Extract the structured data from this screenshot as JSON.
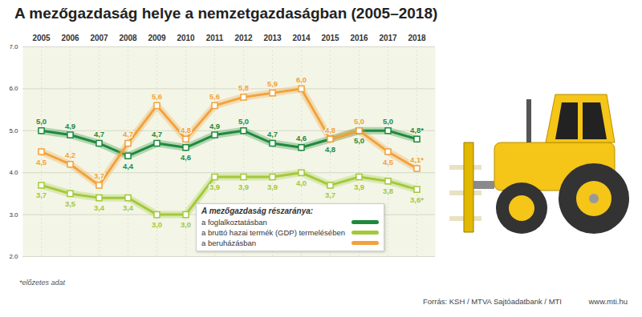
{
  "chart_data": {
    "type": "line",
    "title": "A mezőgazdaság helye a nemzetgazdaságban (2005–2018)",
    "x": [
      "2005",
      "2006",
      "2007",
      "2008",
      "2009",
      "2010",
      "2011",
      "2012",
      "2013",
      "2014",
      "2015",
      "2016",
      "2017",
      "2018"
    ],
    "ylim": [
      2,
      7
    ],
    "yticks": [
      2,
      3,
      4,
      5,
      6,
      7
    ],
    "grid": true,
    "data_labels": true,
    "legend": "bottom-right",
    "legend_title": "A mezőgazdaság részaránya:",
    "footnote": "*előzetes adat",
    "source": "Forrás: KSH / MTVA Sajtóadatbank / MTI",
    "credit": "www.mti.hu",
    "series": [
      {
        "name": "a foglalkoztatásban",
        "color": "#1f8a3c",
        "marker": "square",
        "values": [
          5.0,
          4.9,
          4.7,
          4.4,
          4.7,
          4.6,
          4.9,
          5.0,
          4.7,
          4.6,
          4.8,
          5.0,
          5.0,
          4.8
        ],
        "value_labels": [
          "5,0",
          "4,9",
          "4,7",
          "4,4",
          "4,7",
          "4,6",
          "4,9",
          "5,0",
          "4,7",
          "4,6",
          "4,8",
          "5,0",
          "5,0",
          "4,8*"
        ]
      },
      {
        "name": "a bruttó hazai termék (GDP) termelésében",
        "color": "#a3c93a",
        "marker": "square",
        "values": [
          3.7,
          3.5,
          3.4,
          3.4,
          3.0,
          3.0,
          3.9,
          3.9,
          3.9,
          4.0,
          3.7,
          3.9,
          3.8,
          3.6
        ],
        "value_labels": [
          "3,7",
          "3,5",
          "3,4",
          "3,4",
          "3,0",
          "3,0",
          "3,9",
          "3,9",
          "3,9",
          "4,0",
          "3,7",
          "3,9",
          "3,8",
          "3,6*"
        ]
      },
      {
        "name": "a beruházásban",
        "color": "#f2a23c",
        "marker": "square",
        "values": [
          4.5,
          4.2,
          3.7,
          4.7,
          5.6,
          4.8,
          5.6,
          5.8,
          5.9,
          6.0,
          4.8,
          5.0,
          4.5,
          4.1
        ],
        "value_labels": [
          "4,5",
          "4,2",
          "3,7",
          "4,7",
          "5,6",
          "4,8",
          "5,6",
          "5,8",
          "5,9",
          "6,0",
          "4,8",
          "5,0",
          "4,5",
          "4,1*"
        ]
      }
    ]
  }
}
